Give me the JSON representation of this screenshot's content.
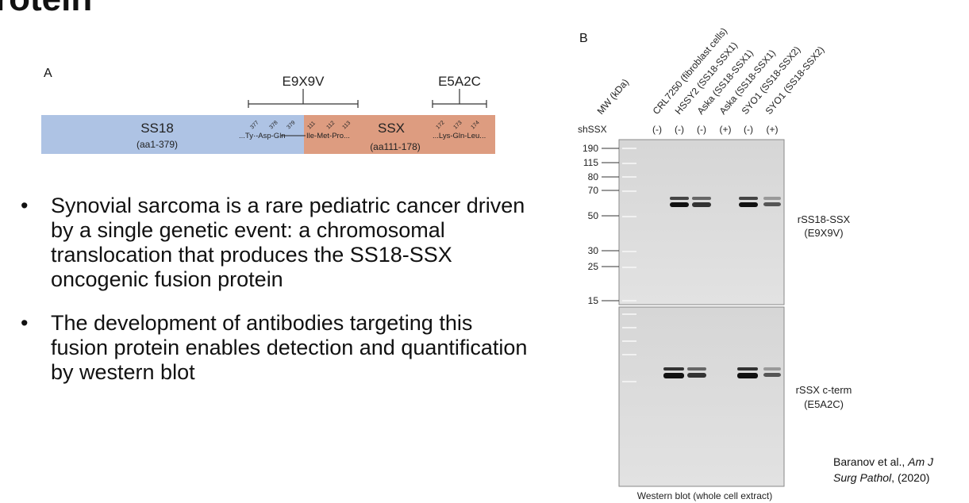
{
  "slide": {
    "title": "rotein",
    "citation": {
      "authors": "Baranov et al.,",
      "journal_line1": "Am J",
      "journal_line2": "Surg Pathol",
      "year": ", (2020)"
    }
  },
  "panel_a": {
    "letter": "A",
    "bracket_left": "E9X9V",
    "bracket_right": "E5A2C",
    "ss18_label": "SS18",
    "ss18_range": "(aa1-379)",
    "ssx_label": "SSX",
    "ssx_range": "(aa111-178)",
    "seq_ss18": "...Ty·-Asp-Gln",
    "seq_ssx1": "Ile-Met-Pro...",
    "seq_ssx2": "...Lys-Gln-Leu...",
    "pos": [
      "377",
      "378",
      "379",
      "111",
      "112",
      "113",
      "172",
      "173",
      "174"
    ],
    "colors": {
      "ss18": "#aec3e4",
      "ssx": "#dd9c80"
    }
  },
  "bullets": [
    "Synovial sarcoma is a rare pediatric cancer driven by a single genetic event: a chromosomal translocation that produces the SS18-SSX oncogenic fusion protein",
    "The development of antibodies targeting this fusion protein enables detection and quantification by western blot"
  ],
  "panel_b": {
    "letter": "B",
    "mw_header": "MW (kDa)",
    "lanes": [
      "CRL7250 (fibroblast cells)",
      "HSSY2 (SS18-SSX1)",
      "Aska (SS18-SSX1)",
      "Aska (SS18-SSX1)",
      "SYO1 (SS18-SSX2)",
      "SYO1 (SS18-SSX2)"
    ],
    "shssx_label": "shSSX",
    "shssx": [
      "(-)",
      "(-)",
      "(-)",
      "(+)",
      "(-)",
      "(+)"
    ],
    "mw_markers": [
      "190",
      "115",
      "80",
      "70",
      "50",
      "30",
      "25",
      "15"
    ],
    "top_label1": "rSS18-SSX",
    "top_label2": "(E9X9V)",
    "bottom_label1": "rSSX c-term",
    "bottom_label2": "(E5A2C)",
    "caption": "Western blot (whole cell extract)",
    "band_intensity": [
      0,
      1.0,
      0.75,
      0,
      1.0,
      0.55
    ]
  }
}
